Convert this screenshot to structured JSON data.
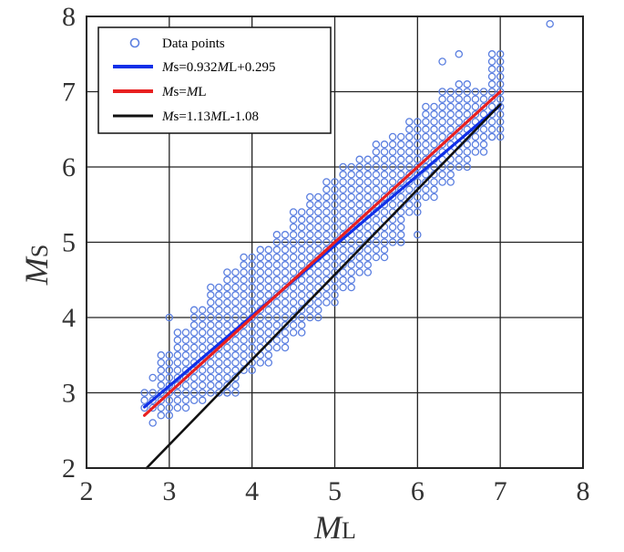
{
  "chart_data": {
    "type": "scatter",
    "xlabel": {
      "main": "M",
      "sub": "L"
    },
    "ylabel": {
      "main": "M",
      "sub": "S"
    },
    "xlim": [
      2,
      8
    ],
    "ylim": [
      2,
      8
    ],
    "xticks": [
      "2",
      "3",
      "4",
      "5",
      "6",
      "7",
      "8"
    ],
    "yticks": [
      "2",
      "3",
      "4",
      "5",
      "6",
      "7",
      "8"
    ],
    "grid": true,
    "legend_position": "top-left",
    "colors": {
      "points": "#5b7fe0",
      "fit": "#1030e8",
      "identity": "#e82020",
      "alt": "#111111",
      "grid": "#222222"
    },
    "point_groups": [
      {
        "x": [
          2.7,
          2.8
        ],
        "y_range": [
          2.8,
          3.0
        ]
      },
      {
        "x": [
          2.9,
          3.0
        ],
        "y_range": [
          2.7,
          3.5
        ]
      },
      {
        "x": [
          3.1,
          3.2
        ],
        "y_range": [
          2.8,
          3.8
        ]
      },
      {
        "x": [
          3.3,
          3.4
        ],
        "y_range": [
          2.9,
          4.1
        ]
      },
      {
        "x": [
          3.5,
          3.6
        ],
        "y_range": [
          3.0,
          4.4
        ]
      },
      {
        "x": [
          3.7,
          3.8
        ],
        "y_range": [
          3.0,
          4.6
        ]
      },
      {
        "x": [
          3.9,
          4.0
        ],
        "y_range": [
          3.3,
          4.8
        ]
      },
      {
        "x": [
          4.1,
          4.2
        ],
        "y_range": [
          3.4,
          4.9
        ]
      },
      {
        "x": [
          4.3,
          4.4
        ],
        "y_range": [
          3.6,
          5.1
        ]
      },
      {
        "x": [
          4.5,
          4.6
        ],
        "y_range": [
          3.8,
          5.4
        ]
      },
      {
        "x": [
          4.7,
          4.8
        ],
        "y_range": [
          4.0,
          5.6
        ]
      },
      {
        "x": [
          4.9,
          5.0
        ],
        "y_range": [
          4.2,
          5.8
        ]
      },
      {
        "x": [
          5.1,
          5.2
        ],
        "y_range": [
          4.4,
          6.0
        ]
      },
      {
        "x": [
          5.3,
          5.4
        ],
        "y_range": [
          4.6,
          6.1
        ]
      },
      {
        "x": [
          5.5,
          5.6
        ],
        "y_range": [
          4.8,
          6.3
        ]
      },
      {
        "x": [
          5.7,
          5.8
        ],
        "y_range": [
          5.0,
          6.4
        ]
      },
      {
        "x": [
          5.9,
          6.0
        ],
        "y_range": [
          5.4,
          6.6
        ]
      },
      {
        "x": [
          6.1,
          6.2
        ],
        "y_range": [
          5.6,
          6.8
        ]
      },
      {
        "x": [
          6.3,
          6.4
        ],
        "y_range": [
          5.8,
          7.0
        ]
      },
      {
        "x": [
          6.5,
          6.6
        ],
        "y_range": [
          6.0,
          7.1
        ]
      },
      {
        "x": [
          6.7,
          6.8
        ],
        "y_range": [
          6.2,
          7.0
        ]
      },
      {
        "x": [
          6.9,
          7.0
        ],
        "y_range": [
          6.4,
          7.5
        ]
      }
    ],
    "outliers": [
      [
        7.6,
        7.9
      ],
      [
        6.3,
        7.4
      ],
      [
        6.5,
        7.5
      ],
      [
        3.0,
        4.0
      ],
      [
        2.8,
        2.6
      ],
      [
        2.8,
        3.2
      ],
      [
        6.9,
        6.4
      ],
      [
        6.0,
        5.1
      ],
      [
        5.8,
        5.0
      ],
      [
        3.7,
        3.0
      ],
      [
        3.0,
        3.3
      ]
    ],
    "series": [
      {
        "type": "scatter",
        "label": "Data points"
      },
      {
        "type": "line",
        "label": {
          "a": "M",
          "b": "s",
          "c": "=0.932",
          "d": "M",
          "e": "L",
          "f": "+0.295"
        },
        "x": [
          2.7,
          7.0
        ],
        "slope": 0.932,
        "intercept": 0.295
      },
      {
        "type": "line",
        "label": {
          "a": "M",
          "b": "s",
          "c": "=",
          "d": "M",
          "e": "L",
          "f": ""
        },
        "x": [
          2.7,
          7.0
        ],
        "slope": 1.0,
        "intercept": 0.0
      },
      {
        "type": "line",
        "label": {
          "a": "M",
          "b": "s",
          "c": "=1.13",
          "d": "M",
          "e": "L",
          "f": "-1.08"
        },
        "x": [
          2.7,
          7.0
        ],
        "slope": 1.13,
        "intercept": -1.08
      }
    ]
  }
}
